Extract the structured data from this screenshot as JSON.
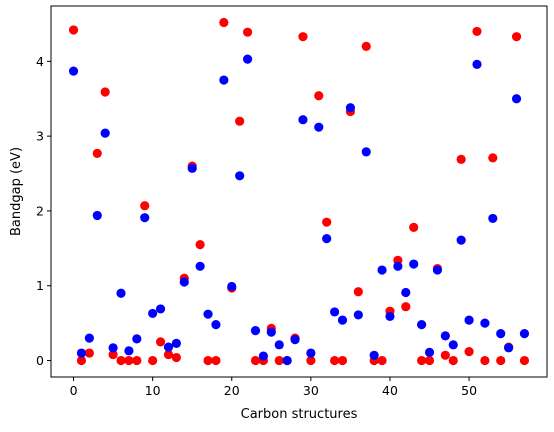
{
  "chart_data": {
    "type": "scatter",
    "xlabel": "Carbon structures",
    "ylabel": "Bandgap (eV)",
    "xlim": [
      -2.85,
      59.85
    ],
    "ylim": [
      -0.22,
      4.74
    ],
    "xticks": [
      0,
      10,
      20,
      30,
      40,
      50
    ],
    "yticks": [
      0,
      1,
      2,
      3,
      4
    ],
    "grid": false,
    "series": [
      {
        "color": "#ff0000",
        "x": [
          0,
          1,
          2,
          3,
          4,
          5,
          6,
          7,
          8,
          9,
          10,
          11,
          12,
          13,
          14,
          15,
          16,
          17,
          18,
          19,
          20,
          21,
          22,
          23,
          24,
          25,
          26,
          27,
          28,
          29,
          30,
          31,
          32,
          33,
          34,
          35,
          36,
          37,
          38,
          39,
          40,
          41,
          42,
          43,
          44,
          45,
          46,
          47,
          48,
          49,
          50,
          51,
          52,
          53,
          54,
          55,
          56,
          57
        ],
        "y": [
          4.42,
          0.0,
          0.1,
          2.77,
          3.59,
          0.08,
          0.0,
          0.0,
          0.0,
          2.07,
          0.0,
          0.25,
          0.08,
          0.04,
          1.1,
          2.6,
          1.55,
          0.0,
          0.0,
          4.52,
          0.97,
          3.2,
          4.39,
          0.0,
          0.0,
          0.43,
          0.0,
          0.0,
          0.3,
          4.33,
          0.0,
          3.54,
          1.85,
          0.0,
          0.0,
          3.33,
          0.92,
          4.2,
          0.0,
          0.0,
          0.66,
          1.34,
          0.72,
          1.78,
          0.0,
          0.0,
          1.23,
          0.07,
          0.0,
          2.69,
          0.12,
          4.4,
          0.0,
          2.71,
          0.0,
          0.18,
          4.33,
          0.0
        ]
      },
      {
        "color": "#0000ff",
        "x": [
          0,
          1,
          2,
          3,
          4,
          5,
          6,
          7,
          8,
          9,
          10,
          11,
          12,
          13,
          14,
          15,
          16,
          17,
          18,
          19,
          20,
          21,
          22,
          23,
          24,
          25,
          26,
          27,
          28,
          29,
          30,
          31,
          32,
          33,
          34,
          35,
          36,
          37,
          38,
          39,
          40,
          41,
          42,
          43,
          44,
          45,
          46,
          47,
          48,
          49,
          50,
          51,
          52,
          53,
          54,
          55,
          56,
          57
        ],
        "y": [
          3.87,
          0.1,
          0.3,
          1.94,
          3.04,
          0.17,
          0.9,
          0.13,
          0.29,
          1.91,
          0.63,
          0.69,
          0.18,
          0.23,
          1.05,
          2.57,
          1.26,
          0.62,
          0.48,
          3.75,
          0.99,
          2.47,
          4.03,
          0.4,
          0.06,
          0.38,
          0.21,
          0.0,
          0.28,
          3.22,
          0.1,
          3.12,
          1.63,
          0.65,
          0.54,
          3.38,
          0.61,
          2.79,
          0.07,
          1.21,
          0.59,
          1.26,
          0.91,
          1.29,
          0.48,
          0.11,
          1.21,
          0.33,
          0.21,
          1.61,
          0.54,
          3.96,
          0.5,
          1.9,
          0.36,
          0.17,
          3.5,
          0.36
        ]
      }
    ]
  }
}
